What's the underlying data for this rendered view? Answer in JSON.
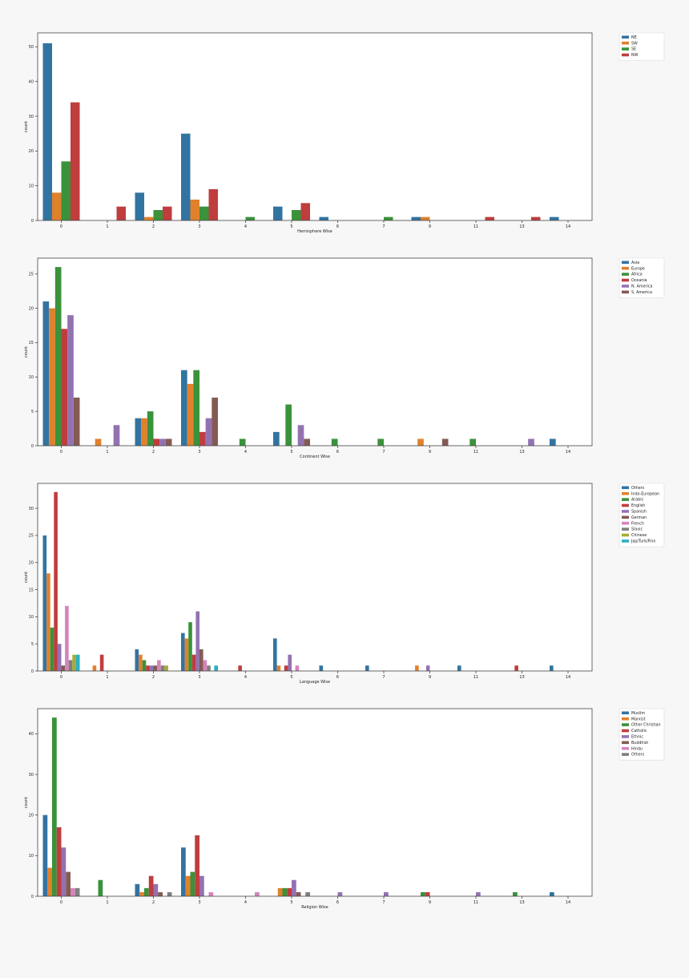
{
  "chart_data": [
    {
      "type": "bar",
      "xlabel": "Hemisphere Wise",
      "ylabel": "count",
      "ylim": [
        0,
        54
      ],
      "yticks": [
        0,
        10,
        20,
        30,
        40,
        50
      ],
      "categories": [
        "0",
        "1",
        "2",
        "3",
        "4",
        "5",
        "6",
        "7",
        "9",
        "11",
        "13",
        "14"
      ],
      "legend_placement": "outside-right",
      "series": [
        {
          "name": "NE",
          "color": "#3274a1",
          "values": [
            51,
            0,
            8,
            25,
            0,
            4,
            1,
            0,
            1,
            0,
            0,
            1
          ]
        },
        {
          "name": "SW",
          "color": "#e1812c",
          "values": [
            8,
            0,
            1,
            6,
            0,
            0,
            0,
            0,
            1,
            0,
            0,
            0
          ]
        },
        {
          "name": "SE",
          "color": "#3a923a",
          "values": [
            17,
            0,
            3,
            4,
            1,
            3,
            0,
            1,
            0,
            0,
            0,
            0
          ]
        },
        {
          "name": "NW",
          "color": "#c03d3e",
          "values": [
            34,
            4,
            4,
            9,
            0,
            5,
            0,
            0,
            0,
            1,
            1,
            0
          ]
        }
      ]
    },
    {
      "type": "bar",
      "xlabel": "Continent Wise",
      "ylabel": "count",
      "ylim": [
        0,
        27.3
      ],
      "yticks": [
        0,
        5,
        10,
        15,
        20,
        25
      ],
      "categories": [
        "0",
        "1",
        "2",
        "3",
        "4",
        "5",
        "6",
        "7",
        "9",
        "11",
        "13",
        "14"
      ],
      "legend_placement": "outside-right",
      "series": [
        {
          "name": "Asia",
          "color": "#3274a1",
          "values": [
            21,
            0,
            4,
            11,
            0,
            2,
            0,
            0,
            0,
            0,
            0,
            1
          ]
        },
        {
          "name": "Europe",
          "color": "#e1812c",
          "values": [
            20,
            1,
            4,
            9,
            0,
            0,
            0,
            0,
            1,
            0,
            0,
            0
          ]
        },
        {
          "name": "Africa",
          "color": "#3a923a",
          "values": [
            26,
            0,
            5,
            11,
            1,
            6,
            1,
            1,
            0,
            1,
            0,
            0
          ]
        },
        {
          "name": "Oceania",
          "color": "#c03d3e",
          "values": [
            17,
            0,
            1,
            2,
            0,
            0,
            0,
            0,
            0,
            0,
            0,
            0
          ]
        },
        {
          "name": "N. America",
          "color": "#9372b2",
          "values": [
            19,
            3,
            1,
            4,
            0,
            3,
            0,
            0,
            0,
            0,
            1,
            0
          ]
        },
        {
          "name": "S. America",
          "color": "#845b53",
          "values": [
            7,
            0,
            1,
            7,
            0,
            1,
            0,
            0,
            1,
            0,
            0,
            0
          ]
        }
      ]
    },
    {
      "type": "bar",
      "xlabel": "Language Wise",
      "ylabel": "count",
      "ylim": [
        0,
        34.6
      ],
      "yticks": [
        0,
        5,
        10,
        15,
        20,
        25,
        30
      ],
      "categories": [
        "0",
        "1",
        "2",
        "3",
        "4",
        "5",
        "6",
        "7",
        "9",
        "11",
        "13",
        "14"
      ],
      "legend_placement": "outside-right",
      "series": [
        {
          "name": "Others",
          "color": "#3274a1",
          "values": [
            25,
            0,
            4,
            7,
            0,
            6,
            1,
            1,
            0,
            1,
            0,
            1
          ]
        },
        {
          "name": "Indo-European",
          "color": "#e1812c",
          "values": [
            18,
            1,
            3,
            6,
            0,
            1,
            0,
            0,
            1,
            0,
            0,
            0
          ]
        },
        {
          "name": "Arabic",
          "color": "#3a923a",
          "values": [
            8,
            0,
            2,
            9,
            0,
            0,
            0,
            0,
            0,
            0,
            0,
            0
          ]
        },
        {
          "name": "English",
          "color": "#c03d3e",
          "values": [
            33,
            3,
            1,
            3,
            1,
            1,
            0,
            0,
            0,
            0,
            1,
            0
          ]
        },
        {
          "name": "Spanish",
          "color": "#9372b2",
          "values": [
            5,
            0,
            1,
            11,
            0,
            3,
            0,
            0,
            1,
            0,
            0,
            0
          ]
        },
        {
          "name": "German",
          "color": "#845b53",
          "values": [
            1,
            0,
            1,
            4,
            0,
            0,
            0,
            0,
            0,
            0,
            0,
            0
          ]
        },
        {
          "name": "French",
          "color": "#d684bd",
          "values": [
            12,
            0,
            2,
            2,
            0,
            1,
            0,
            0,
            0,
            0,
            0,
            0
          ]
        },
        {
          "name": "Slavic",
          "color": "#7f7f7f",
          "values": [
            2,
            0,
            1,
            1,
            0,
            0,
            0,
            0,
            0,
            0,
            0,
            0
          ]
        },
        {
          "name": "Chinese",
          "color": "#a9aa35",
          "values": [
            3,
            0,
            1,
            0,
            0,
            0,
            0,
            0,
            0,
            0,
            0,
            0
          ]
        },
        {
          "name": "Jap/Turk/Finn",
          "color": "#2ab0c5",
          "values": [
            3,
            0,
            0,
            1,
            0,
            0,
            0,
            0,
            0,
            0,
            0,
            0
          ]
        }
      ]
    },
    {
      "type": "bar",
      "xlabel": "Religion Wise",
      "ylabel": "count",
      "ylim": [
        0,
        46.2
      ],
      "yticks": [
        0,
        10,
        20,
        30,
        40
      ],
      "categories": [
        "0",
        "1",
        "2",
        "3",
        "4",
        "5",
        "6",
        "7",
        "9",
        "11",
        "13",
        "14"
      ],
      "legend_placement": "outside-right",
      "series": [
        {
          "name": "Muslim",
          "color": "#3274a1",
          "values": [
            20,
            0,
            3,
            12,
            0,
            0,
            0,
            0,
            0,
            0,
            0,
            1
          ]
        },
        {
          "name": "Marxist",
          "color": "#e1812c",
          "values": [
            7,
            0,
            1,
            5,
            0,
            2,
            0,
            0,
            0,
            0,
            0,
            0
          ]
        },
        {
          "name": "Other Christian",
          "color": "#3a923a",
          "values": [
            44,
            4,
            2,
            6,
            0,
            2,
            0,
            0,
            1,
            0,
            1,
            0
          ]
        },
        {
          "name": "Catholic",
          "color": "#c03d3e",
          "values": [
            17,
            0,
            5,
            15,
            0,
            2,
            0,
            0,
            1,
            0,
            0,
            0
          ]
        },
        {
          "name": "Ethnic",
          "color": "#9372b2",
          "values": [
            12,
            0,
            3,
            5,
            0,
            4,
            1,
            1,
            0,
            1,
            0,
            0
          ]
        },
        {
          "name": "Buddhist",
          "color": "#845b53",
          "values": [
            6,
            0,
            1,
            0,
            0,
            1,
            0,
            0,
            0,
            0,
            0,
            0
          ]
        },
        {
          "name": "Hindu",
          "color": "#d684bd",
          "values": [
            2,
            0,
            0,
            1,
            1,
            0,
            0,
            0,
            0,
            0,
            0,
            0
          ]
        },
        {
          "name": "Others",
          "color": "#7f7f7f",
          "values": [
            2,
            0,
            1,
            0,
            0,
            1,
            0,
            0,
            0,
            0,
            0,
            0
          ]
        }
      ]
    }
  ]
}
